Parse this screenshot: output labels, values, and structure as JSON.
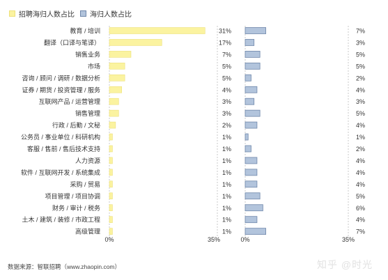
{
  "legend": {
    "recruit_label": "招聘海归人数占比",
    "returnee_label": "海归人数占比"
  },
  "colors": {
    "recruit_fill": "#fbf3a0",
    "recruit_stroke": "#ede07a",
    "returnee_fill": "#b2c4dc",
    "returnee_stroke": "#6f87aa",
    "track": "#c9c9c9"
  },
  "chart_data": {
    "type": "bar",
    "orientation": "horizontal",
    "categories": [
      "教育 / 培训",
      "翻译（口译与笔译）",
      "销售业务",
      "市场",
      "咨询 / 顾问 / 调研 / 数据分析",
      "证券 / 期货 / 投资管理 / 服务",
      "互联网产品 / 运营管理",
      "销售管理",
      "行政 / 后勤 / 文秘",
      "公务员 / 事业单位 / 科研机构",
      "客服 / 售前 / 售后技术支持",
      "人力资源",
      "软件 / 互联网开发 / 系统集成",
      "采购 / 贸易",
      "项目管理 / 项目协调",
      "财务 / 审计 / 税务",
      "土木 / 建筑 / 装修 / 市政工程",
      "高级管理"
    ],
    "series": [
      {
        "name": "招聘海归人数占比",
        "values": [
          31,
          17,
          7,
          5,
          5,
          4,
          3,
          3,
          2,
          1,
          1,
          1,
          1,
          1,
          1,
          1,
          1,
          1
        ],
        "labels": [
          "31%",
          "17%",
          "7%",
          "5%",
          "5%",
          "4%",
          "3%",
          "3%",
          "2%",
          "1%",
          "1%",
          "1%",
          "1%",
          "1%",
          "1%",
          "1%",
          "1%",
          "1%"
        ]
      },
      {
        "name": "海归人数占比",
        "values": [
          7,
          3,
          5,
          5,
          2,
          4,
          3,
          5,
          4,
          1,
          2,
          4,
          4,
          4,
          5,
          6,
          4,
          7
        ],
        "labels": [
          "7%",
          "3%",
          "5%",
          "5%",
          "2%",
          "4%",
          "3%",
          "5%",
          "4%",
          "1%",
          "2%",
          "4%",
          "4%",
          "4%",
          "5%",
          "6%",
          "4%",
          "7%"
        ]
      }
    ],
    "xlim": [
      0,
      35
    ],
    "tick_labels": [
      "0%",
      "35%"
    ]
  },
  "source": "数据来源：智联招聘（www.zhaopin.com）",
  "watermark": "知乎 @时光"
}
